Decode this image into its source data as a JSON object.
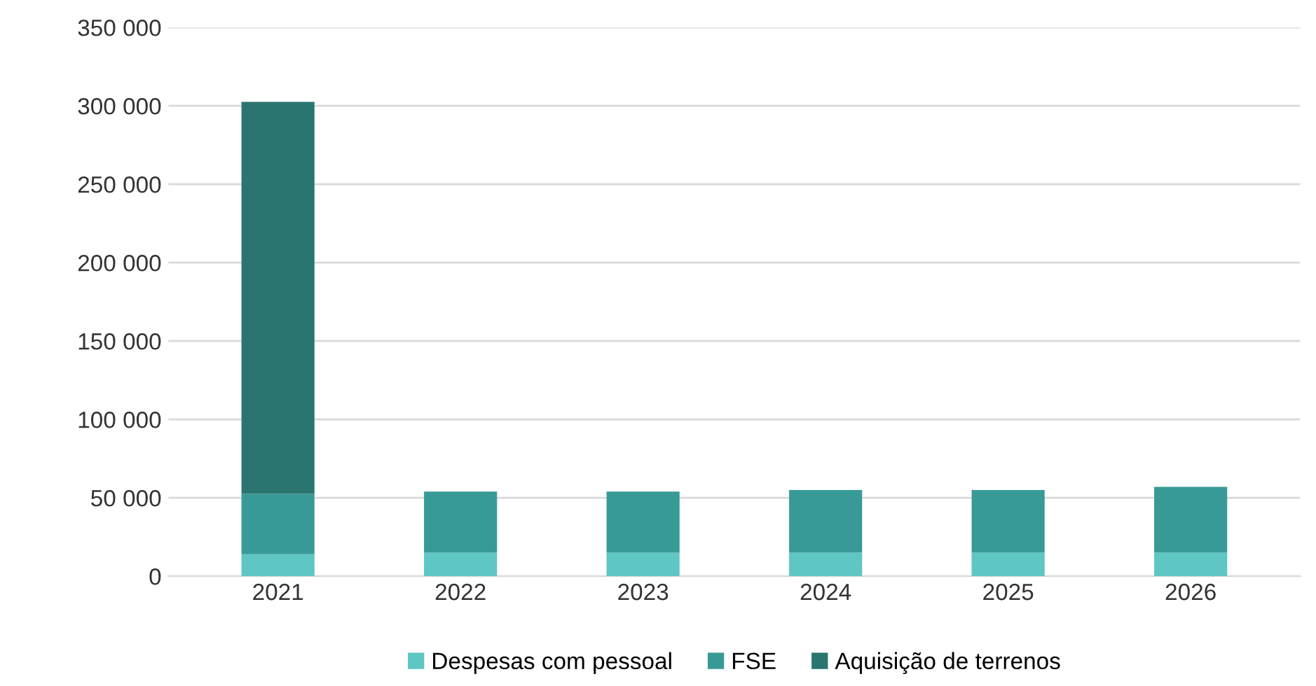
{
  "chart_data": {
    "type": "bar",
    "stacked": true,
    "categories": [
      "2021",
      "2022",
      "2023",
      "2024",
      "2025",
      "2026"
    ],
    "series": [
      {
        "name": "Despesas com pessoal",
        "color": "#5ec6c3",
        "values": [
          14000,
          15000,
          15000,
          15000,
          15000,
          15000
        ]
      },
      {
        "name": "FSE",
        "color": "#389a97",
        "values": [
          38500,
          39000,
          39000,
          40000,
          40000,
          42000
        ]
      },
      {
        "name": "Aquisição de terrenos",
        "color": "#2b7571",
        "values": [
          250000,
          null,
          null,
          null,
          null,
          null
        ]
      }
    ],
    "ylim": [
      0,
      350000
    ],
    "yticks": [
      {
        "value": 0,
        "label": "0"
      },
      {
        "value": 50000,
        "label": "50 000"
      },
      {
        "value": 100000,
        "label": "100 000"
      },
      {
        "value": 150000,
        "label": "150 000"
      },
      {
        "value": 200000,
        "label": "200 000"
      },
      {
        "value": 250000,
        "label": "250 000"
      },
      {
        "value": 300000,
        "label": "300 000"
      },
      {
        "value": 350000,
        "label": "350 000"
      }
    ],
    "grid": "y",
    "legend": "bottom"
  }
}
